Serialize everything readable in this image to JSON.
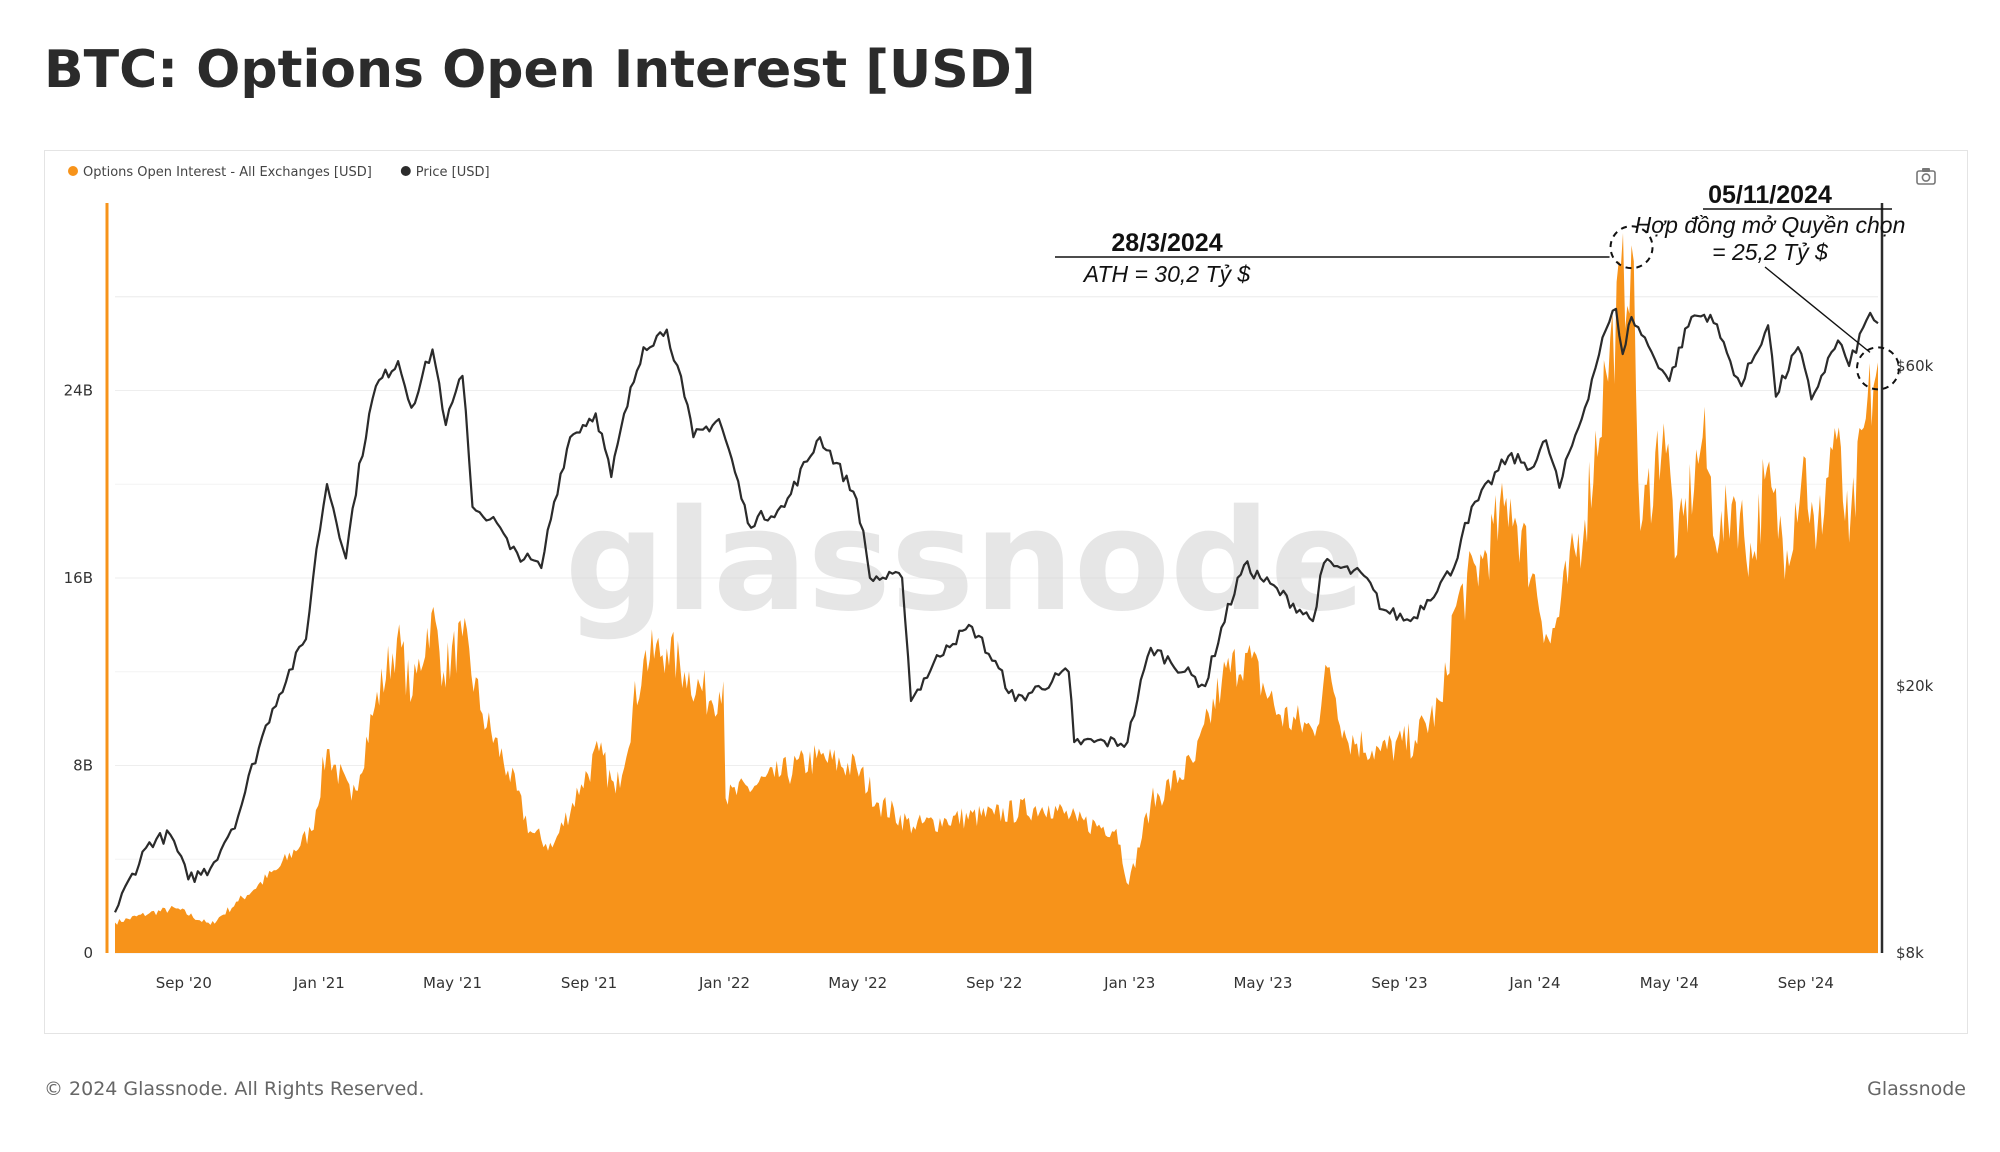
{
  "page": {
    "title": "BTC: Options Open Interest [USD]",
    "footer_left": "© 2024 Glassnode. All Rights Reserved.",
    "footer_right": "Glassnode",
    "watermark": "glassnode"
  },
  "toolbar": {
    "camera_icon": "camera-icon"
  },
  "colors": {
    "oi": "#f7931a",
    "price": "#2b2b2b",
    "grid": "#eeeeee"
  },
  "chart_data": {
    "type": "area",
    "legend": [
      {
        "name": "Options Open Interest - All Exchanges [USD]",
        "color": "#f7931a"
      },
      {
        "name": "Price [USD]",
        "color": "#2b2b2b"
      }
    ],
    "legend_position": "top-left",
    "grid": true,
    "x_range": [
      "2020-07-01",
      "2024-11-05"
    ],
    "x_ticks": [
      {
        "date": "2020-09-01",
        "label": "Sep '20"
      },
      {
        "date": "2021-01-01",
        "label": "Jan '21"
      },
      {
        "date": "2021-05-01",
        "label": "May '21"
      },
      {
        "date": "2021-09-01",
        "label": "Sep '21"
      },
      {
        "date": "2022-01-01",
        "label": "Jan '22"
      },
      {
        "date": "2022-05-01",
        "label": "May '22"
      },
      {
        "date": "2022-09-01",
        "label": "Sep '22"
      },
      {
        "date": "2023-01-01",
        "label": "Jan '23"
      },
      {
        "date": "2023-05-01",
        "label": "May '23"
      },
      {
        "date": "2023-09-01",
        "label": "Sep '23"
      },
      {
        "date": "2024-01-01",
        "label": "Jan '24"
      },
      {
        "date": "2024-05-01",
        "label": "May '24"
      },
      {
        "date": "2024-09-01",
        "label": "Sep '24"
      }
    ],
    "y_left": {
      "range": [
        0,
        32000000000
      ],
      "ticks": [
        {
          "value": 0,
          "label": "0"
        },
        {
          "value": 8000000000,
          "label": "8B"
        },
        {
          "value": 16000000000,
          "label": "16B"
        },
        {
          "value": 24000000000,
          "label": "24B"
        }
      ]
    },
    "y_right": {
      "scale": "log",
      "range": [
        8000,
        105000
      ],
      "ticks": [
        {
          "value": 8000,
          "label": "$8k"
        },
        {
          "value": 20000,
          "label": "$20k"
        },
        {
          "value": 60000,
          "label": "$60k"
        }
      ]
    },
    "series": [
      {
        "name": "Options Open Interest - All Exchanges [USD]",
        "type": "area",
        "axis": "left",
        "points": [
          [
            "2020-07-01",
            1300000000.0
          ],
          [
            "2020-08-01",
            1700000000.0
          ],
          [
            "2020-08-25",
            1900000000.0
          ],
          [
            "2020-09-25",
            1200000000.0
          ],
          [
            "2020-10-20",
            2200000000.0
          ],
          [
            "2020-11-25",
            3600000000.0
          ],
          [
            "2020-12-25",
            5200000000.0
          ],
          [
            "2021-01-08",
            8700000000.0
          ],
          [
            "2021-01-30",
            6500000000.0
          ],
          [
            "2021-02-20",
            10500000000.0
          ],
          [
            "2021-03-12",
            13400000000.0
          ],
          [
            "2021-03-26",
            11000000000.0
          ],
          [
            "2021-04-12",
            14500000000.0
          ],
          [
            "2021-04-23",
            12000000000.0
          ],
          [
            "2021-05-10",
            13500000000.0
          ],
          [
            "2021-05-28",
            10200000000.0
          ],
          [
            "2021-06-20",
            7800000000.0
          ],
          [
            "2021-07-10",
            5200000000.0
          ],
          [
            "2021-07-30",
            4500000000.0
          ],
          [
            "2021-08-25",
            7200000000.0
          ],
          [
            "2021-09-10",
            8600000000.0
          ],
          [
            "2021-09-25",
            6800000000.0
          ],
          [
            "2021-10-20",
            12500000000.0
          ],
          [
            "2021-11-10",
            13000000000.0
          ],
          [
            "2021-11-26",
            12000000000.0
          ],
          [
            "2021-12-20",
            10800000000.0
          ],
          [
            "2021-12-31",
            11600000000.0
          ],
          [
            "2022-01-02",
            6600000000.0
          ],
          [
            "2022-02-15",
            7500000000.0
          ],
          [
            "2022-03-25",
            8300000000.0
          ],
          [
            "2022-04-30",
            7900000000.0
          ],
          [
            "2022-05-20",
            6400000000.0
          ],
          [
            "2022-06-20",
            5400000000.0
          ],
          [
            "2022-07-20",
            5700000000.0
          ],
          [
            "2022-09-01",
            5900000000.0
          ],
          [
            "2022-10-20",
            6300000000.0
          ],
          [
            "2022-11-15",
            5600000000.0
          ],
          [
            "2022-12-20",
            5300000000.0
          ],
          [
            "2022-12-31",
            2900000000.0
          ],
          [
            "2023-01-20",
            6400000000.0
          ],
          [
            "2023-03-01",
            8200000000.0
          ],
          [
            "2023-03-25",
            11600000000.0
          ],
          [
            "2023-04-15",
            12800000000.0
          ],
          [
            "2023-05-15",
            10200000000.0
          ],
          [
            "2023-06-15",
            9500000000.0
          ],
          [
            "2023-06-30",
            12200000000.0
          ],
          [
            "2023-07-15",
            9200000000.0
          ],
          [
            "2023-08-15",
            8600000000.0
          ],
          [
            "2023-09-15",
            9100000000.0
          ],
          [
            "2023-10-10",
            10700000000.0
          ],
          [
            "2023-10-20",
            14600000000.0
          ],
          [
            "2023-11-15",
            16800000000.0
          ],
          [
            "2023-12-10",
            19400000000.0
          ],
          [
            "2023-12-30",
            16200000000.0
          ],
          [
            "2024-01-15",
            13200000000.0
          ],
          [
            "2024-02-15",
            18500000000.0
          ],
          [
            "2024-03-05",
            24800000000.0
          ],
          [
            "2024-03-28",
            30200000000.0
          ],
          [
            "2024-04-05",
            18000000000.0
          ],
          [
            "2024-04-26",
            22600000000.0
          ],
          [
            "2024-05-08",
            17000000000.0
          ],
          [
            "2024-05-31",
            22000000000.0
          ],
          [
            "2024-06-15",
            17500000000.0
          ],
          [
            "2024-06-28",
            19500000000.0
          ],
          [
            "2024-07-15",
            16800000000.0
          ],
          [
            "2024-07-26",
            20200000000.0
          ],
          [
            "2024-08-15",
            17200000000.0
          ],
          [
            "2024-08-30",
            21200000000.0
          ],
          [
            "2024-09-10",
            17200000000.0
          ],
          [
            "2024-09-27",
            22400000000.0
          ],
          [
            "2024-10-10",
            17500000000.0
          ],
          [
            "2024-10-25",
            22800000000.0
          ],
          [
            "2024-11-01",
            24200000000.0
          ],
          [
            "2024-11-05",
            25200000000.0
          ]
        ]
      },
      {
        "name": "Price [USD]",
        "type": "line",
        "axis": "right",
        "points": [
          [
            "2020-07-01",
            9200
          ],
          [
            "2020-08-01",
            11700
          ],
          [
            "2020-08-20",
            12000
          ],
          [
            "2020-09-05",
            10300
          ],
          [
            "2020-09-25",
            10700
          ],
          [
            "2020-10-20",
            12800
          ],
          [
            "2020-11-20",
            18500
          ],
          [
            "2020-12-20",
            23500
          ],
          [
            "2021-01-08",
            40000
          ],
          [
            "2021-01-25",
            31000
          ],
          [
            "2021-02-21",
            56000
          ],
          [
            "2021-03-13",
            61000
          ],
          [
            "2021-03-25",
            52000
          ],
          [
            "2021-04-13",
            63500
          ],
          [
            "2021-04-25",
            49000
          ],
          [
            "2021-05-10",
            58000
          ],
          [
            "2021-05-19",
            37000
          ],
          [
            "2021-06-10",
            35000
          ],
          [
            "2021-06-22",
            32000
          ],
          [
            "2021-07-20",
            30000
          ],
          [
            "2021-08-15",
            47000
          ],
          [
            "2021-09-07",
            51000
          ],
          [
            "2021-09-21",
            41000
          ],
          [
            "2021-10-20",
            64000
          ],
          [
            "2021-11-10",
            68000
          ],
          [
            "2021-11-26",
            54000
          ],
          [
            "2021-12-04",
            47000
          ],
          [
            "2021-12-27",
            50000
          ],
          [
            "2022-01-22",
            35000
          ],
          [
            "2022-02-24",
            37000
          ],
          [
            "2022-03-28",
            47000
          ],
          [
            "2022-04-30",
            38000
          ],
          [
            "2022-05-12",
            29000
          ],
          [
            "2022-06-10",
            29000
          ],
          [
            "2022-06-18",
            19000
          ],
          [
            "2022-07-20",
            23000
          ],
          [
            "2022-08-12",
            24500
          ],
          [
            "2022-09-20",
            19000
          ],
          [
            "2022-11-07",
            21000
          ],
          [
            "2022-11-12",
            16500
          ],
          [
            "2022-12-30",
            16500
          ],
          [
            "2023-01-20",
            22800
          ],
          [
            "2023-03-10",
            20000
          ],
          [
            "2023-04-14",
            30300
          ],
          [
            "2023-06-15",
            25000
          ],
          [
            "2023-06-25",
            30500
          ],
          [
            "2023-07-31",
            29200
          ],
          [
            "2023-08-17",
            26000
          ],
          [
            "2023-09-11",
            25000
          ],
          [
            "2023-10-20",
            30000
          ],
          [
            "2023-10-30",
            35000
          ],
          [
            "2023-12-08",
            44000
          ],
          [
            "2023-12-31",
            42500
          ],
          [
            "2024-01-11",
            46500
          ],
          [
            "2024-01-23",
            39500
          ],
          [
            "2024-02-15",
            52000
          ],
          [
            "2024-03-05",
            68000
          ],
          [
            "2024-03-14",
            73000
          ],
          [
            "2024-03-20",
            62500
          ],
          [
            "2024-03-28",
            71000
          ],
          [
            "2024-04-15",
            63000
          ],
          [
            "2024-05-01",
            57000
          ],
          [
            "2024-05-21",
            71000
          ],
          [
            "2024-06-07",
            71500
          ],
          [
            "2024-06-25",
            61000
          ],
          [
            "2024-07-05",
            56000
          ],
          [
            "2024-07-29",
            69000
          ],
          [
            "2024-08-05",
            54000
          ],
          [
            "2024-08-25",
            64000
          ],
          [
            "2024-09-06",
            53500
          ],
          [
            "2024-09-30",
            65500
          ],
          [
            "2024-10-10",
            60000
          ],
          [
            "2024-10-29",
            72000
          ],
          [
            "2024-11-05",
            69500
          ]
        ]
      }
    ],
    "annotations": [
      {
        "date_label": "28/3/2024",
        "lines": [
          "ATH = 30,2 Tỷ $"
        ],
        "point_date": "2024-03-28",
        "point_value": 30200000000
      },
      {
        "date_label": "05/11/2024",
        "lines": [
          "Hợp đồng mở Quyền chọn",
          "= 25,2 Tỷ $"
        ],
        "point_date": "2024-11-05",
        "point_value": 25200000000
      }
    ]
  }
}
